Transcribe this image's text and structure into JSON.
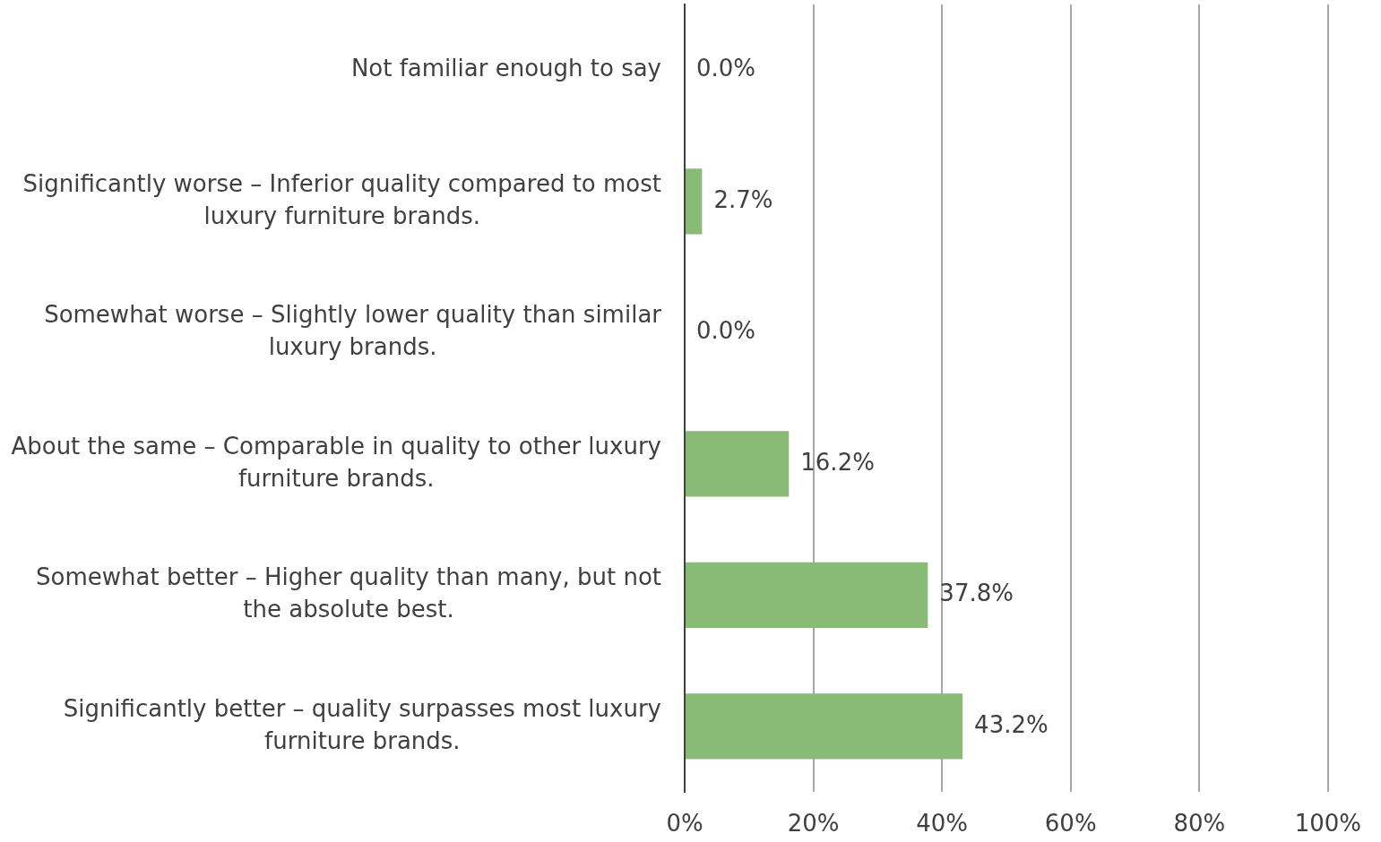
{
  "chart_data": {
    "type": "bar",
    "orientation": "horizontal",
    "categories": [
      "Not familiar enough to say",
      "Significantly worse – Inferior quality compared to most luxury furniture brands.",
      "Somewhat worse – Slightly lower quality than similar luxury brands.",
      "About the same – Comparable in quality to other luxury furniture brands.",
      "Somewhat better – Higher quality than many, but not the absolute best.",
      "Significantly better – quality surpasses most luxury furniture brands."
    ],
    "values": [
      0.0,
      2.7,
      0.0,
      16.2,
      37.8,
      43.2
    ],
    "color": "#87bb76",
    "value_labels": [
      "0.0%",
      "2.7%",
      "0.0%",
      "16.2%",
      "37.8%",
      "43.2%"
    ],
    "xlim": [
      0,
      100
    ],
    "xticks": [
      {
        "value": 0,
        "label": "0%"
      },
      {
        "value": 20,
        "label": "20%"
      },
      {
        "value": 40,
        "label": "40%"
      },
      {
        "value": 60,
        "label": "60%"
      },
      {
        "value": 80,
        "label": "80%"
      },
      {
        "value": 100,
        "label": "100%"
      }
    ],
    "grid": "x"
  }
}
